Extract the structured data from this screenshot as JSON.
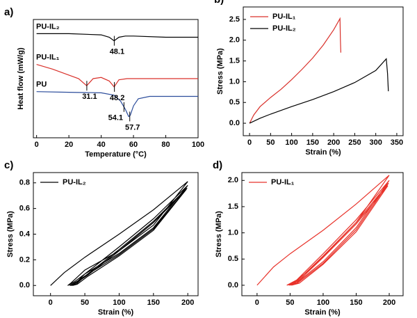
{
  "chart_data": [
    {
      "type": "line",
      "label": "a)",
      "xlabel": "Temperature (°C)",
      "ylabel": "Heat flow (mW/g)",
      "xlim": [
        -2,
        100
      ],
      "ylim": [
        0,
        10
      ],
      "xticks": [
        0,
        20,
        40,
        60,
        80,
        100
      ],
      "legend": "inline",
      "series": [
        {
          "name": "PU-IL₂",
          "color": "#000000",
          "x": [
            0,
            20,
            40,
            45,
            48,
            51,
            55,
            60,
            80,
            100
          ],
          "values": [
            8.8,
            8.8,
            8.7,
            8.5,
            8.2,
            8.5,
            8.6,
            8.6,
            8.5,
            8.5
          ]
        },
        {
          "name": "PU-IL₁",
          "color": "#d9302a",
          "x": [
            0,
            10,
            20,
            26,
            31,
            35,
            40,
            45,
            48,
            51,
            56,
            65,
            80,
            100
          ],
          "values": [
            6.2,
            5.8,
            5.3,
            5.0,
            4.4,
            5.0,
            5.1,
            4.8,
            4.3,
            4.9,
            5.0,
            5.0,
            5.0,
            5.0
          ]
        },
        {
          "name": "PU",
          "color": "#2b4c9b",
          "x": [
            0,
            20,
            40,
            48,
            52,
            55,
            57,
            58,
            60,
            63,
            70,
            80,
            100
          ],
          "values": [
            3.9,
            3.85,
            3.8,
            3.6,
            3.1,
            2.4,
            1.8,
            1.9,
            2.7,
            3.3,
            3.5,
            3.5,
            3.5
          ]
        }
      ],
      "annotations": [
        {
          "label": "48.1",
          "x": 48.1,
          "y": 8.2
        },
        {
          "label": "31.1",
          "x": 31.1,
          "y": 4.4
        },
        {
          "label": "48.2",
          "x": 48.2,
          "y": 4.3
        },
        {
          "label": "54.1",
          "x": 54.1,
          "y": 2.6
        },
        {
          "label": "57.7",
          "x": 57.7,
          "y": 1.8
        }
      ]
    },
    {
      "type": "line",
      "label": "b)",
      "xlabel": "Strain (%)",
      "ylabel": "Stress (MPa)",
      "xlim": [
        -15,
        365
      ],
      "ylim": [
        -0.3,
        2.8
      ],
      "xticks": [
        0,
        50,
        100,
        150,
        200,
        250,
        300,
        350
      ],
      "yticks": [
        {
          "value": 0,
          "label": "0.0"
        },
        0.5,
        {
          "value": 1,
          "label": "1.0"
        },
        1.5,
        {
          "value": 2,
          "label": "2.0"
        },
        2.5
      ],
      "legend": "upper left",
      "series": [
        {
          "name": "PU-IL₁",
          "color": "#d9302a",
          "x": [
            0,
            10,
            25,
            50,
            75,
            100,
            125,
            150,
            175,
            200,
            215,
            216,
            217
          ],
          "values": [
            0,
            0.2,
            0.4,
            0.62,
            0.82,
            1.05,
            1.3,
            1.57,
            1.88,
            2.25,
            2.52,
            2.0,
            1.7
          ]
        },
        {
          "name": "PU-IL₂",
          "color": "#000000",
          "x": [
            0,
            25,
            50,
            100,
            150,
            200,
            250,
            300,
            325,
            328,
            330
          ],
          "values": [
            0,
            0.12,
            0.22,
            0.4,
            0.57,
            0.76,
            0.98,
            1.27,
            1.55,
            1.2,
            0.77
          ]
        }
      ]
    },
    {
      "type": "line",
      "label": "c)",
      "xlabel": "Strain (%)",
      "ylabel": "Stress (MPa)",
      "xlim": [
        -25,
        215
      ],
      "ylim": [
        -0.08,
        0.88
      ],
      "xticks": [
        0,
        50,
        100,
        150,
        200
      ],
      "yticks": [
        {
          "value": 0,
          "label": "0.0"
        },
        0.2,
        0.4,
        0.6,
        0.8
      ],
      "legend": "upper left",
      "series": [
        {
          "name": "PU-IL₂",
          "color": "#000000",
          "x": [
            0,
            20,
            50,
            100,
            150,
            200,
            150,
            100,
            50,
            30,
            25,
            35,
            50,
            100,
            150,
            200,
            150,
            100,
            50,
            35,
            28,
            38,
            52,
            100,
            150,
            199,
            150,
            100,
            52,
            37,
            30,
            40,
            54,
            100,
            150,
            198,
            150,
            100,
            54,
            39,
            32
          ],
          "values": [
            0,
            0.1,
            0.22,
            0.4,
            0.59,
            0.81,
            0.47,
            0.27,
            0.12,
            0.02,
            0,
            0.03,
            0.09,
            0.3,
            0.52,
            0.78,
            0.45,
            0.25,
            0.09,
            0.01,
            0,
            0.03,
            0.08,
            0.28,
            0.5,
            0.76,
            0.44,
            0.24,
            0.08,
            0.01,
            0,
            0.03,
            0.08,
            0.27,
            0.49,
            0.75,
            0.43,
            0.23,
            0.07,
            0.01,
            0
          ]
        }
      ]
    },
    {
      "type": "line",
      "label": "d)",
      "xlabel": "Strain (%)",
      "ylabel": "Stress (MPa)",
      "xlim": [
        -23,
        221
      ],
      "ylim": [
        -0.2,
        2.15
      ],
      "xticks": [
        0,
        50,
        100,
        150,
        200
      ],
      "yticks": [
        {
          "value": 0,
          "label": "0.0"
        },
        0.5,
        {
          "value": 1,
          "label": "1.0"
        },
        1.5,
        {
          "value": 2,
          "label": "2.0"
        }
      ],
      "legend": "upper left",
      "series": [
        {
          "name": "PU-IL₁",
          "color": "#e8322a",
          "x": [
            0,
            25,
            50,
            100,
            150,
            200,
            150,
            100,
            75,
            55,
            45,
            60,
            100,
            150,
            200,
            150,
            100,
            60,
            48,
            62,
            100,
            150,
            199,
            150,
            100,
            62,
            50,
            64,
            100,
            150,
            198,
            150,
            100,
            64,
            52
          ],
          "values": [
            0,
            0.35,
            0.6,
            1.05,
            1.55,
            2.1,
            1.2,
            0.55,
            0.25,
            0.05,
            0,
            0.1,
            0.6,
            1.25,
            2.0,
            1.1,
            0.45,
            0.05,
            0,
            0.1,
            0.56,
            1.2,
            1.95,
            1.06,
            0.42,
            0.05,
            0,
            0.1,
            0.53,
            1.17,
            1.9,
            1.02,
            0.4,
            0.04,
            0
          ]
        }
      ]
    }
  ]
}
